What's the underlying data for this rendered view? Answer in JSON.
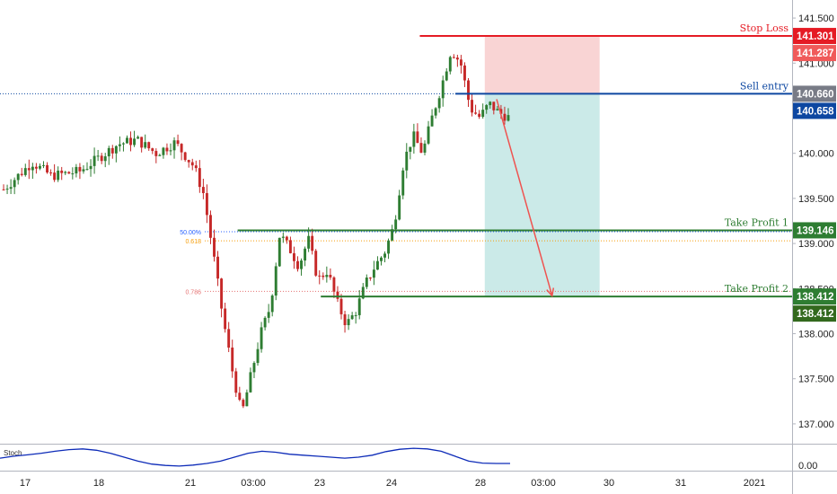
{
  "chart_data": {
    "type": "candlestick",
    "instrument_timeframe": "",
    "ylim": [
      136.78,
      141.7
    ],
    "y_ticks": [
      "141.500",
      "141.000",
      "140.000",
      "139.500",
      "139.000",
      "138.500",
      "138.000",
      "137.500",
      "137.000"
    ],
    "x_ticks": [
      "17",
      "18",
      "21",
      "03:00",
      "23",
      "24",
      "28",
      "03:00",
      "30",
      "31",
      "2021"
    ],
    "price_path": [
      [
        0,
        139.6
      ],
      [
        3,
        139.9
      ],
      [
        5,
        139.75
      ],
      [
        8,
        139.8
      ],
      [
        10,
        139.95
      ],
      [
        12,
        140.1
      ],
      [
        14,
        140.15
      ],
      [
        16,
        140.0
      ],
      [
        18,
        140.12
      ],
      [
        20,
        139.85
      ],
      [
        21,
        139.55
      ],
      [
        22,
        138.9
      ],
      [
        23,
        138.2
      ],
      [
        24,
        137.6
      ],
      [
        25,
        137.1
      ],
      [
        26,
        137.55
      ],
      [
        27,
        138.0
      ],
      [
        28,
        138.3
      ],
      [
        29,
        139.1
      ],
      [
        30,
        138.95
      ],
      [
        31,
        138.75
      ],
      [
        32,
        139.05
      ],
      [
        33,
        138.6
      ],
      [
        34,
        138.7
      ],
      [
        35,
        138.35
      ],
      [
        36,
        138.1
      ],
      [
        37,
        138.25
      ],
      [
        38,
        138.55
      ],
      [
        39,
        138.75
      ],
      [
        40,
        138.9
      ],
      [
        41,
        139.2
      ],
      [
        42,
        139.9
      ],
      [
        43,
        140.2
      ],
      [
        44,
        140.0
      ],
      [
        45,
        140.4
      ],
      [
        46,
        140.75
      ],
      [
        47,
        141.15
      ],
      [
        48,
        141.0
      ],
      [
        49,
        140.5
      ],
      [
        50,
        140.4
      ],
      [
        51,
        140.55
      ],
      [
        52,
        140.45
      ],
      [
        53,
        140.4
      ]
    ],
    "stochastic": {
      "label": "Stoch",
      "axis_label": "0.00",
      "values": [
        0.45,
        0.55,
        0.62,
        0.7,
        0.8,
        0.88,
        0.92,
        0.85,
        0.7,
        0.5,
        0.3,
        0.15,
        0.08,
        0.05,
        0.1,
        0.18,
        0.3,
        0.5,
        0.7,
        0.8,
        0.75,
        0.65,
        0.6,
        0.55,
        0.5,
        0.45,
        0.5,
        0.6,
        0.78,
        0.9,
        0.95,
        0.92,
        0.8,
        0.55,
        0.3,
        0.2,
        0.18,
        0.18
      ]
    },
    "levels": [
      {
        "name": "Stop Loss",
        "price": 141.301,
        "color": "#e51b24",
        "tag_color": "#e51b24",
        "tag": "141.301",
        "from": 0.53
      },
      {
        "name": "Sell entry",
        "price": 140.66,
        "color": "#0d47a1",
        "tag_color": "#0d47a1",
        "tag": "140.658",
        "from": 0.575
      },
      {
        "name": "Take Profit 1",
        "price": 139.146,
        "color": "#2e7d32",
        "tag_color": "#2e7d32",
        "tag": "139.146",
        "from": 0.3
      },
      {
        "name": "Take Profit 2",
        "price": 138.412,
        "color": "#2e7d32",
        "tag_color": "#2e7d32",
        "tag": "138.412",
        "from": 0.405
      }
    ],
    "price_tags": [
      {
        "value": "141.301",
        "color": "#e51b24"
      },
      {
        "value": "141.287",
        "color": "#f05a5a"
      },
      {
        "value": "140.660",
        "color": "#787b86"
      },
      {
        "value": "140.658",
        "color": "#0d47a1"
      },
      {
        "value": "139.146",
        "color": "#2e7d32"
      },
      {
        "value": "138.412",
        "color": "#2e7d32"
      },
      {
        "value": "138.412",
        "color": "#33691e"
      }
    ],
    "fib_levels": [
      {
        "label": "50.00%",
        "price": 139.13,
        "color": "#2962ff"
      },
      {
        "label": "0.618",
        "price": 139.03,
        "color": "#f59e0b"
      },
      {
        "label": "0.786",
        "price": 138.47,
        "color": "#e57373"
      }
    ],
    "dotted_line_price": 140.66,
    "trade_zone": {
      "x_from": 0.612,
      "x_to": 0.757,
      "entry": 140.66,
      "stop": 141.301,
      "target": 138.412
    },
    "arrow": {
      "from_x": 0.627,
      "from_price": 140.6,
      "to_x": 0.697,
      "to_price": 138.42
    }
  }
}
